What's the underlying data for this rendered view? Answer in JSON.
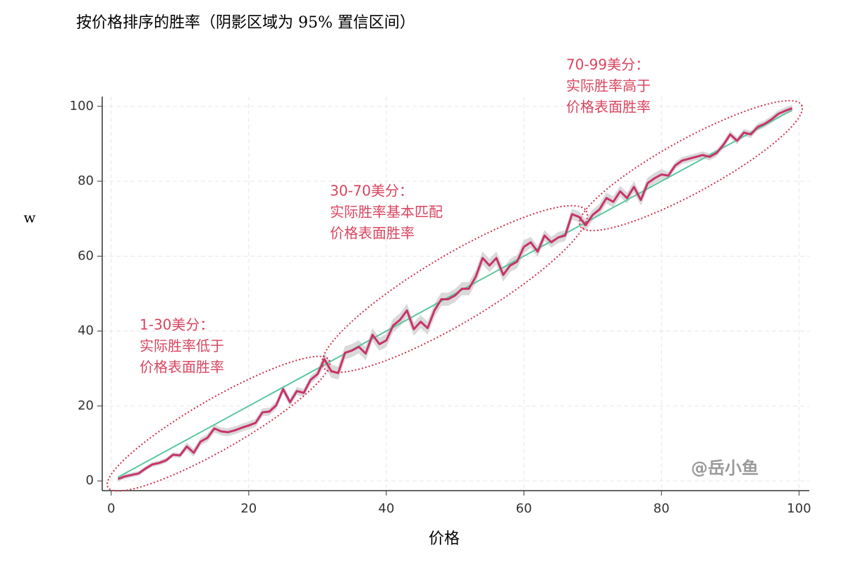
{
  "chart_data": {
    "type": "line",
    "title": "按价格排序的胜率（阴影区域为 95% 置信区间）",
    "x_label": "价格",
    "y_label": "w",
    "watermark": "@岳小鱼",
    "xlim": [
      -1.3,
      101.5
    ],
    "ylim": [
      -2.6,
      102.6
    ],
    "xticks": [
      0,
      20,
      40,
      60,
      80,
      100
    ],
    "yticks": [
      0,
      20,
      40,
      60,
      80,
      100
    ],
    "grid": true,
    "x": [
      1,
      2,
      3,
      4,
      5,
      6,
      7,
      8,
      9,
      10,
      11,
      12,
      13,
      14,
      15,
      16,
      17,
      18,
      19,
      20,
      21,
      22,
      23,
      24,
      25,
      26,
      27,
      28,
      29,
      30,
      31,
      32,
      33,
      34,
      35,
      36,
      37,
      38,
      39,
      40,
      41,
      42,
      43,
      44,
      45,
      46,
      47,
      48,
      49,
      50,
      51,
      52,
      53,
      54,
      55,
      56,
      57,
      58,
      59,
      60,
      61,
      62,
      63,
      64,
      65,
      66,
      67,
      68,
      69,
      70,
      71,
      72,
      73,
      74,
      75,
      76,
      77,
      78,
      79,
      80,
      81,
      82,
      83,
      84,
      85,
      86,
      87,
      88,
      89,
      90,
      91,
      92,
      93,
      94,
      95,
      96,
      97,
      98,
      99
    ],
    "series": [
      {
        "color": "#c8336a",
        "band_color": "#d9d9d9",
        "values": [
          0.5,
          1.2,
          1.6,
          2,
          3.3,
          4.4,
          4.8,
          5.5,
          7,
          6.8,
          9.2,
          7.5,
          10.5,
          11.5,
          14,
          13.2,
          13,
          13.5,
          14.2,
          14.8,
          15.5,
          18.3,
          18.5,
          20.2,
          24.5,
          21,
          24,
          23.5,
          27,
          28.5,
          32.5,
          29.3,
          28.8,
          34.2,
          34.8,
          35.8,
          34,
          39,
          36.5,
          37.5,
          41.5,
          43,
          45.5,
          40.5,
          42.5,
          40.8,
          45.5,
          48.5,
          48.5,
          49.5,
          51.3,
          51.3,
          54.5,
          59.5,
          57.5,
          59.5,
          55,
          57.5,
          58.5,
          62.5,
          63.7,
          61.2,
          65.5,
          63.7,
          65,
          65.5,
          71.2,
          70.5,
          68.3,
          71,
          72.5,
          75.5,
          74.5,
          77.3,
          75.5,
          78.5,
          75,
          79.5,
          80.8,
          81.8,
          81.5,
          84.2,
          85.5,
          86,
          86.5,
          87,
          86.5,
          87.5,
          89.7,
          92.5,
          90.8,
          93,
          92.5,
          94.5,
          95.3,
          96.5,
          98,
          98.8,
          99.5
        ],
        "errors": [
          0.6,
          0.6,
          0.6,
          0.6,
          0.6,
          0.6,
          0.6,
          0.6,
          0.6,
          0.6,
          1,
          1,
          1,
          1,
          1,
          1,
          1,
          1,
          1,
          1,
          1,
          1,
          1,
          1,
          1,
          1,
          1,
          1,
          1,
          1,
          1.7,
          1.7,
          1.7,
          1.7,
          1.7,
          1.7,
          1.7,
          1.7,
          1.7,
          1.7,
          1.7,
          1.7,
          1.7,
          1.7,
          1.7,
          1.7,
          1.7,
          1.7,
          1.7,
          1.7,
          1.7,
          1.7,
          1.7,
          1.7,
          1.7,
          1.7,
          1.7,
          1.7,
          1.7,
          1.7,
          1.4,
          1.4,
          1.4,
          1.4,
          1.4,
          1.4,
          1.4,
          1.4,
          1.4,
          1.4,
          1.4,
          1.4,
          1.4,
          1.4,
          1.4,
          1.4,
          1.4,
          1.4,
          1.4,
          1.4,
          0.9,
          0.9,
          0.9,
          0.9,
          0.9,
          0.9,
          0.9,
          0.9,
          0.9,
          0.9,
          0.9,
          0.9,
          0.9,
          0.9,
          0.9,
          0.9,
          0.9,
          0.9,
          0.9
        ]
      }
    ],
    "reference_line": {
      "x": [
        1,
        99
      ],
      "y": [
        1,
        99
      ],
      "color": "#5cc79e"
    },
    "annotations": [
      {
        "lines": [
          "1-30美分：",
          "实际胜率低于",
          "价格表面胜率"
        ]
      },
      {
        "lines": [
          "30-70美分：",
          "实际胜率基本匹配",
          "价格表面胜率"
        ]
      },
      {
        "lines": [
          "70-99美分：",
          "实际胜率高于",
          "价格表面胜率"
        ]
      }
    ]
  }
}
